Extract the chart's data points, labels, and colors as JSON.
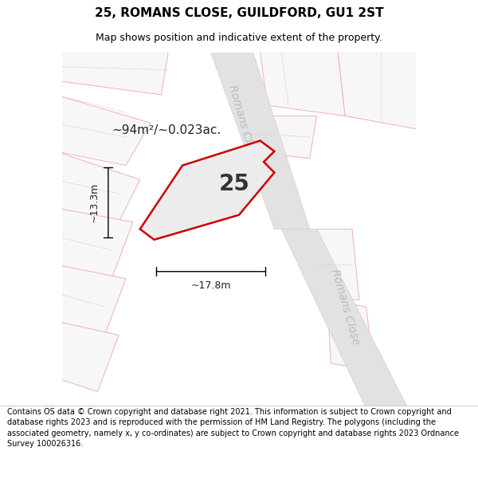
{
  "title": "25, ROMANS CLOSE, GUILDFORD, GU1 2ST",
  "subtitle": "Map shows position and indicative extent of the property.",
  "footer": "Contains OS data © Crown copyright and database right 2021. This information is subject to Crown copyright and database rights 2023 and is reproduced with the permission of HM Land Registry. The polygons (including the associated geometry, namely x, y co-ordinates) are subject to Crown copyright and database rights 2023 Ordnance Survey 100026316.",
  "area_label": "~94m²/~0.023ac.",
  "width_label": "~17.8m",
  "height_label": "~13.3m",
  "plot_number": "25",
  "map_bg": "#efefef",
  "building_fill": "#f7f7f7",
  "building_edge": "#f0b0b0",
  "building_divider": "#e0e0e0",
  "road_fill": "#e2e2e2",
  "road_edge": "#d0d0d0",
  "highlight_edge": "#cc0000",
  "highlight_fill": "#ececec",
  "road_label_color": "#bbbbbb",
  "text_color": "#222222",
  "title_fontsize": 11,
  "subtitle_fontsize": 9,
  "footer_fontsize": 7,
  "plot_label_fontsize": 20,
  "area_label_fontsize": 11,
  "road_label_fontsize": 10,
  "measure_fontsize": 9
}
